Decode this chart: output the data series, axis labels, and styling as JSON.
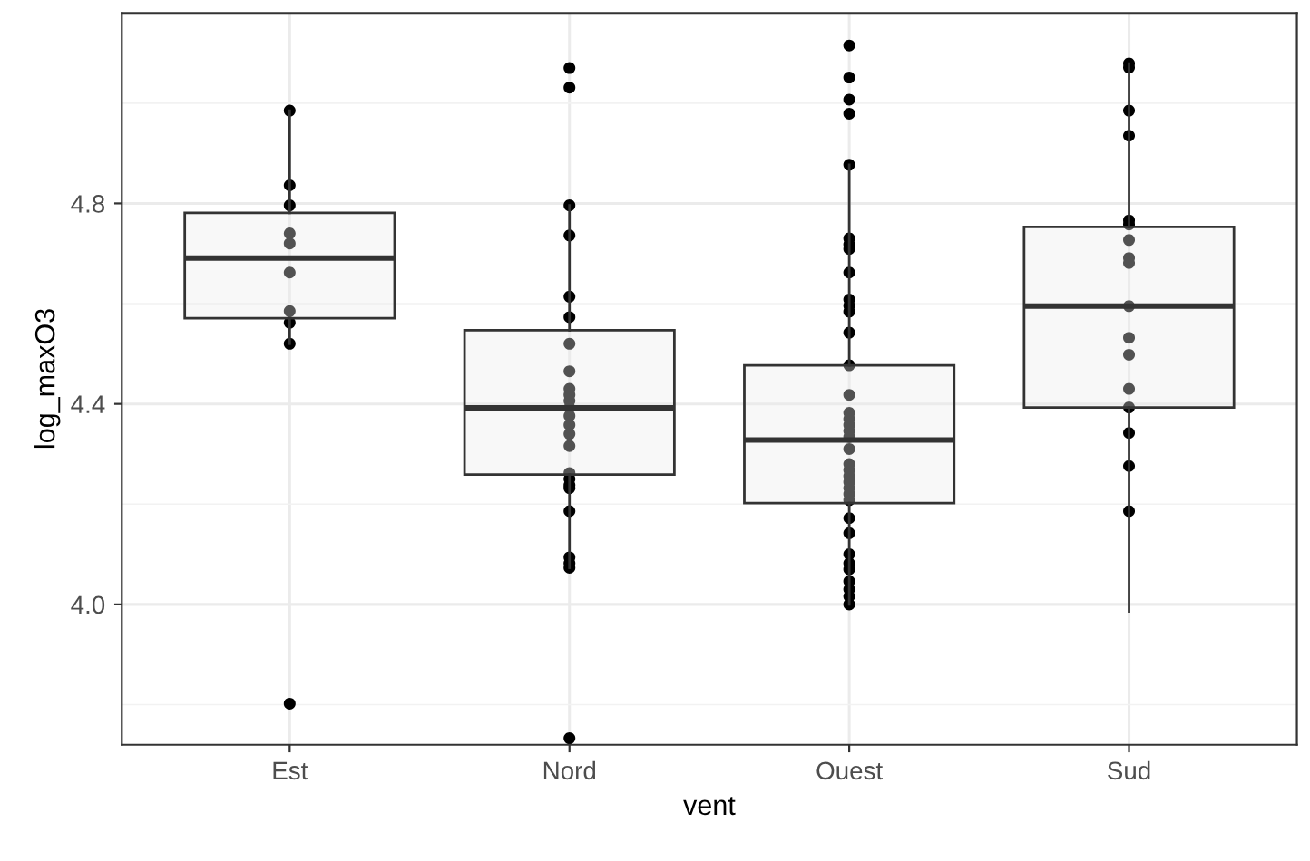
{
  "chart_data": {
    "type": "box",
    "xlabel": "vent",
    "ylabel": "log_maxO3",
    "categories": [
      "Est",
      "Nord",
      "Ouest",
      "Sud"
    ],
    "ylim": [
      3.72,
      5.18
    ],
    "yticks": [
      {
        "value": 3.8,
        "label": null
      },
      {
        "value": 4.0,
        "label": "4.0"
      },
      {
        "value": 4.2,
        "label": null
      },
      4.4,
      {
        "value": 4.6,
        "label": null
      },
      4.8,
      {
        "value": 5.0,
        "label": null
      }
    ],
    "grid": true,
    "color": "#ebebeb",
    "boxes": [
      {
        "low": 4.52,
        "q1": 4.571,
        "median": 4.691,
        "q3": 4.781,
        "high": 4.985
      },
      {
        "low": 4.073,
        "q1": 4.259,
        "median": 4.392,
        "q3": 4.547,
        "high": 4.796
      },
      {
        "low": 4.0,
        "q1": 4.202,
        "median": 4.328,
        "q3": 4.477,
        "high": 4.877
      },
      {
        "low": 3.986,
        "q1": 4.393,
        "median": 4.595,
        "q3": 4.753,
        "high": 5.079
      }
    ],
    "series": [
      {
        "type": "scatter",
        "color": "#000000",
        "marker": "circle",
        "x": [
          "Est",
          "Est",
          "Est",
          "Est",
          "Est",
          "Est",
          "Est",
          "Est",
          "Est",
          "Est",
          "Nord",
          "Nord",
          "Nord",
          "Nord",
          "Nord",
          "Nord",
          "Nord",
          "Nord",
          "Nord",
          "Nord",
          "Nord",
          "Nord",
          "Nord",
          "Nord",
          "Nord",
          "Nord",
          "Nord",
          "Nord",
          "Nord",
          "Nord",
          "Nord",
          "Nord",
          "Nord",
          "Nord",
          "Nord",
          "Ouest",
          "Ouest",
          "Ouest",
          "Ouest",
          "Ouest",
          "Ouest",
          "Ouest",
          "Ouest",
          "Ouest",
          "Ouest",
          "Ouest",
          "Ouest",
          "Ouest",
          "Ouest",
          "Ouest",
          "Ouest",
          "Ouest",
          "Ouest",
          "Ouest",
          "Ouest",
          "Ouest",
          "Ouest",
          "Ouest",
          "Ouest",
          "Ouest",
          "Ouest",
          "Ouest",
          "Ouest",
          "Ouest",
          "Ouest",
          "Ouest",
          "Ouest",
          "Ouest",
          "Ouest",
          "Ouest",
          "Ouest",
          "Ouest",
          "Sud",
          "Sud",
          "Sud",
          "Sud",
          "Sud",
          "Sud",
          "Sud",
          "Sud",
          "Sud",
          "Sud",
          "Sud",
          "Sud",
          "Sud",
          "Sud",
          "Sud",
          "Sud",
          "Sud"
        ],
        "values": [
          4.985,
          4.836,
          4.796,
          4.74,
          4.72,
          4.662,
          4.585,
          4.562,
          4.52,
          3.802,
          5.07,
          5.031,
          4.796,
          4.736,
          4.614,
          4.573,
          4.52,
          4.465,
          4.43,
          4.418,
          4.406,
          4.376,
          4.358,
          4.34,
          4.316,
          4.262,
          4.25,
          4.238,
          4.232,
          4.186,
          4.094,
          4.082,
          4.073,
          3.733,
          4.392,
          5.115,
          5.051,
          5.007,
          4.979,
          4.877,
          4.73,
          4.718,
          4.709,
          4.662,
          4.608,
          4.596,
          4.584,
          4.542,
          4.477,
          4.418,
          4.382,
          4.37,
          4.358,
          4.346,
          4.334,
          4.31,
          4.28,
          4.268,
          4.256,
          4.244,
          4.232,
          4.22,
          4.208,
          4.172,
          4.142,
          4.1,
          4.082,
          4.07,
          4.046,
          4.03,
          4.016,
          4.0,
          5.079,
          5.071,
          4.985,
          4.935,
          4.766,
          4.758,
          4.727,
          4.691,
          4.681,
          4.595,
          4.532,
          4.498,
          4.43,
          4.393,
          4.342,
          4.276,
          4.186
        ]
      }
    ]
  }
}
